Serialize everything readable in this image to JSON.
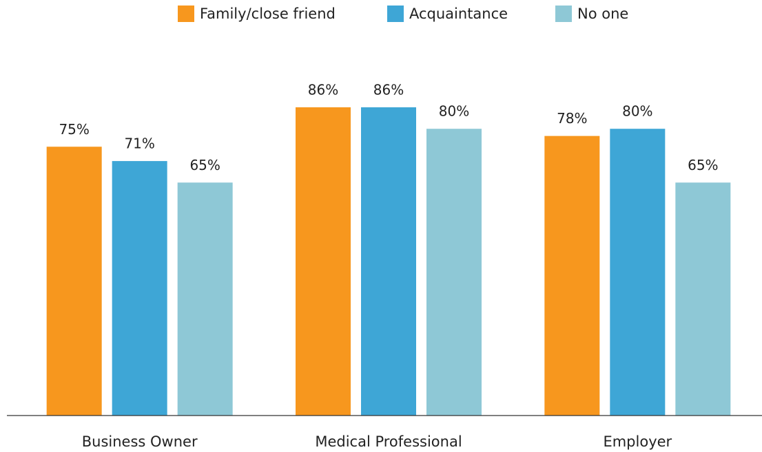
{
  "chart_data": {
    "type": "bar",
    "categories": [
      "Business Owner",
      "Medical Professional",
      "Employer"
    ],
    "series": [
      {
        "name": "Family/close friend",
        "color": "#f7971e",
        "values": [
          75,
          86,
          78
        ],
        "value_labels": [
          "75%",
          "86%",
          "78%"
        ]
      },
      {
        "name": "Acquaintance",
        "color": "#3ea6d6",
        "values": [
          71,
          86,
          80
        ],
        "value_labels": [
          "71%",
          "86%",
          "80%"
        ]
      },
      {
        "name": "No one",
        "color": "#8ec8d6",
        "values": [
          65,
          80,
          65
        ],
        "value_labels": [
          "65%",
          "80%",
          "65%"
        ]
      }
    ],
    "ylim": [
      0,
      100
    ],
    "legend": "top"
  }
}
